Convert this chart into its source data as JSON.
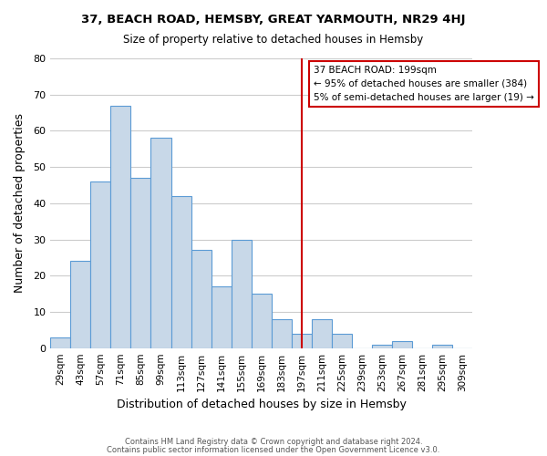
{
  "title1": "37, BEACH ROAD, HEMSBY, GREAT YARMOUTH, NR29 4HJ",
  "title2": "Size of property relative to detached houses in Hemsby",
  "xlabel": "Distribution of detached houses by size in Hemsby",
  "ylabel": "Number of detached properties",
  "footer1": "Contains HM Land Registry data © Crown copyright and database right 2024.",
  "footer2": "Contains public sector information licensed under the Open Government Licence v3.0.",
  "bin_labels": [
    "29sqm",
    "43sqm",
    "57sqm",
    "71sqm",
    "85sqm",
    "99sqm",
    "113sqm",
    "127sqm",
    "141sqm",
    "155sqm",
    "169sqm",
    "183sqm",
    "197sqm",
    "211sqm",
    "225sqm",
    "239sqm",
    "253sqm",
    "267sqm",
    "281sqm",
    "295sqm",
    "309sqm"
  ],
  "bar_heights": [
    3,
    24,
    46,
    67,
    47,
    58,
    42,
    27,
    17,
    30,
    15,
    8,
    4,
    8,
    4,
    0,
    1,
    2,
    0,
    1,
    0
  ],
  "bar_color": "#c8d8e8",
  "bar_edge_color": "#5b9bd5",
  "grid_color": "#cccccc",
  "vline_x": 12,
  "vline_color": "#cc0000",
  "annotation_line1": "37 BEACH ROAD: 199sqm",
  "annotation_line2": "← 95% of detached houses are smaller (384)",
  "annotation_line3": "5% of semi-detached houses are larger (19) →",
  "annotation_box_edge_color": "#cc0000",
  "annotation_box_face_color": "#ffffff",
  "ylim": [
    0,
    80
  ],
  "yticks": [
    0,
    10,
    20,
    30,
    40,
    50,
    60,
    70,
    80
  ]
}
